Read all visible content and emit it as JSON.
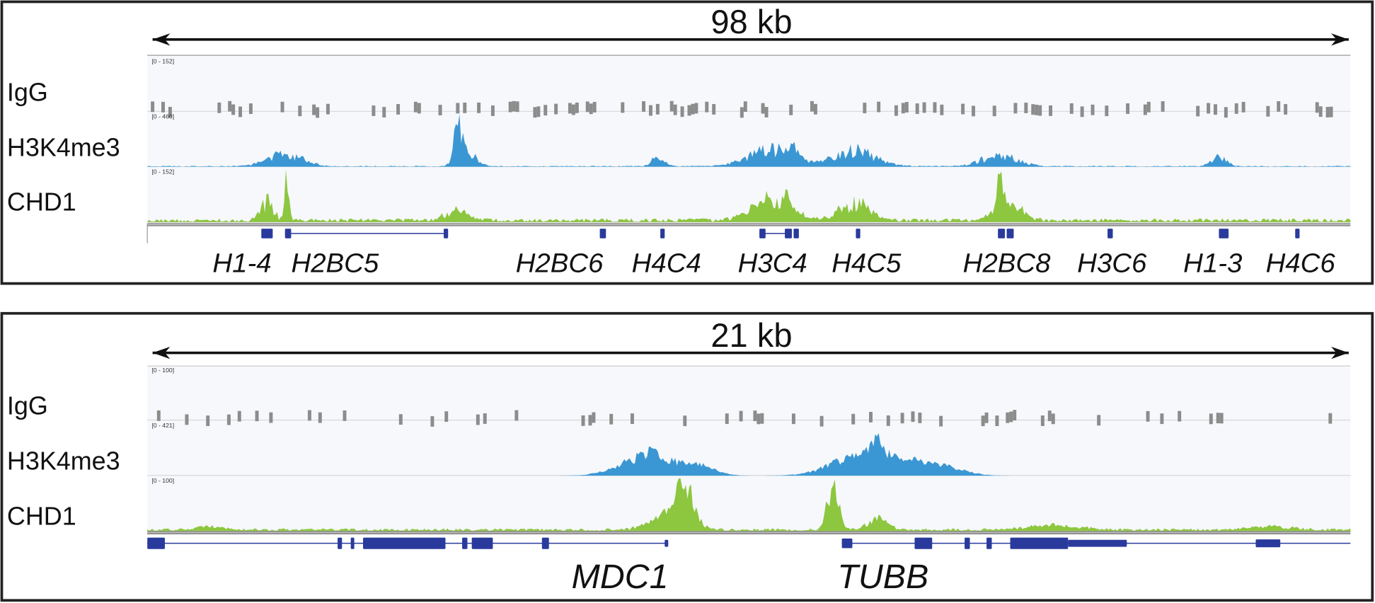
{
  "panels": [
    {
      "scale": "98 kb",
      "tracks": [
        {
          "label": "IgG",
          "range": "[0 - 152]"
        },
        {
          "label": "H3K4me3",
          "range": "[0 - 460]"
        },
        {
          "label": "CHD1",
          "range": "[0 - 152]"
        }
      ],
      "genes": [
        "H1-4",
        "H2BC5",
        "H2BC6",
        "H4C4",
        "H3C4",
        "H4C5",
        "H2BC8",
        "H3C6",
        "H1-3",
        "H4C6"
      ]
    },
    {
      "scale": "21 kb",
      "tracks": [
        {
          "label": "IgG",
          "range": "[0 - 100]"
        },
        {
          "label": "H3K4me3",
          "range": "[0 - 421]"
        },
        {
          "label": "CHD1",
          "range": "[0 - 100]"
        }
      ],
      "genes": [
        "MDC1",
        "TUBB"
      ]
    }
  ]
}
